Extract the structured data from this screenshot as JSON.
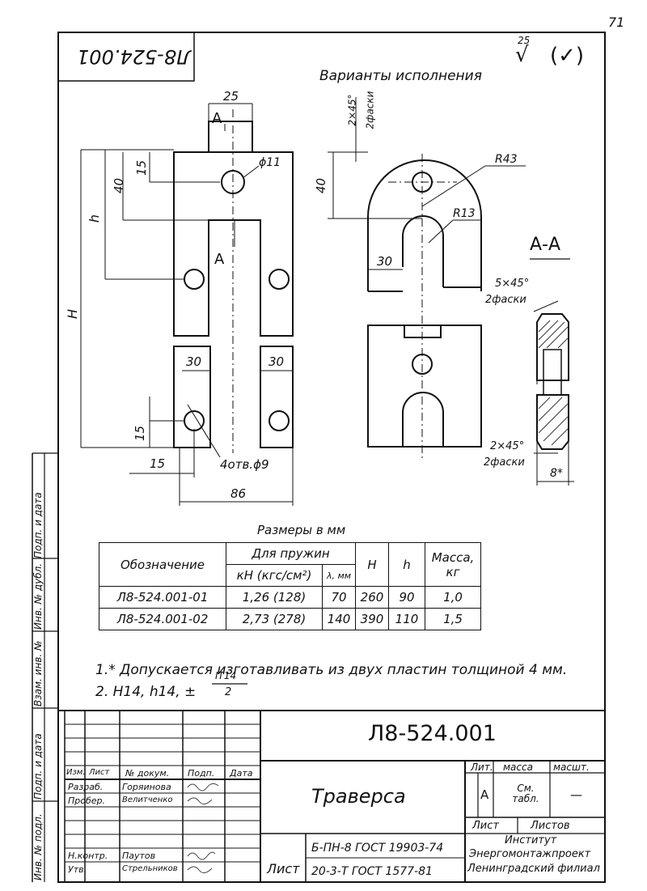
{
  "page_number": "71",
  "stamp_number_top": "Л8-524.001",
  "roughness": {
    "value": "25",
    "paren": "(✓)"
  },
  "variants_title": "Варианты исполнения",
  "section_label": "А-А",
  "dims": {
    "width_top": "25",
    "a_label": "А",
    "d15_top": "15",
    "d40": "40",
    "h": "h",
    "H": "H",
    "hole_d11": "ϕ11",
    "w30_left": "30",
    "w30_right": "30",
    "d15_bottom": "15",
    "d15_side": "15",
    "holes": "4отв.ϕ9",
    "d86": "86",
    "chamfer_top": "2×45°",
    "chamfer_top_sub": "2фаски",
    "r43": "R43",
    "r13": "R13",
    "v40": "40",
    "v30": "30",
    "chamfer_5": "5×45°",
    "chamfer_5_sub": "2фаски",
    "chamfer_2": "2×45°",
    "chamfer_2_sub": "2фаски",
    "thickness": "8*"
  },
  "table_caption": "Размеры в мм",
  "table": {
    "h_designation": "Обозначение",
    "h_springs": "Для пружин",
    "h_kn": "кН (кгс/см²)",
    "h_lambda": "λ, мм",
    "h_H": "H",
    "h_h": "h",
    "h_mass": "Масса, кг",
    "rows": [
      {
        "designation": "Л8-524.001-01",
        "kn": "1,26 (128)",
        "lambda": "70",
        "H": "260",
        "h": "90",
        "mass": "1,0"
      },
      {
        "designation": "Л8-524.001-02",
        "kn": "2,73 (278)",
        "lambda": "140",
        "H": "390",
        "h": "110",
        "mass": "1,5"
      }
    ]
  },
  "notes": [
    "1.* Допускается изготавливать из двух пластин толщиной 4 мм.",
    "2. H14, h14, ±"
  ],
  "note_fraction": {
    "num": "IT14",
    "den": "2"
  },
  "title_block": {
    "doc_number": "Л8-524.001",
    "name": "Траверса",
    "lit": "Лит.",
    "mass": "масса",
    "scale": "масшт.",
    "lit_value": "А",
    "mass_value": "См. табл.",
    "scale_value": "—",
    "sheet": "Лист",
    "sheets": "Листов",
    "org1": "Институт",
    "org2": "Энергомонтажпроект",
    "org3": "Ленинградский филиал",
    "col_izm": "Изм.",
    "col_list": "Лист",
    "col_doc": "№ докум.",
    "col_sign": "Подп.",
    "col_date": "Дата",
    "role1": "Разраб.",
    "name1": "Горяинова",
    "role2": "Пробер.",
    "name2": "Велитченко",
    "role3": "Н.контр.",
    "name3": "Паутов",
    "role4": "Утв.",
    "name4": "Стрельников",
    "sheet_label": "Лист",
    "std1": "Б-ПН-8 ГОСТ 19903-74",
    "std2": "20-3-Т ГОСТ 1577-81"
  },
  "side_labels": {
    "s1": "Подп. и дата",
    "s2": "Инв. № дубл.",
    "s3": "Взам. инв. №",
    "s4": "Подп. и дата",
    "s5": "Инв. № подл."
  }
}
